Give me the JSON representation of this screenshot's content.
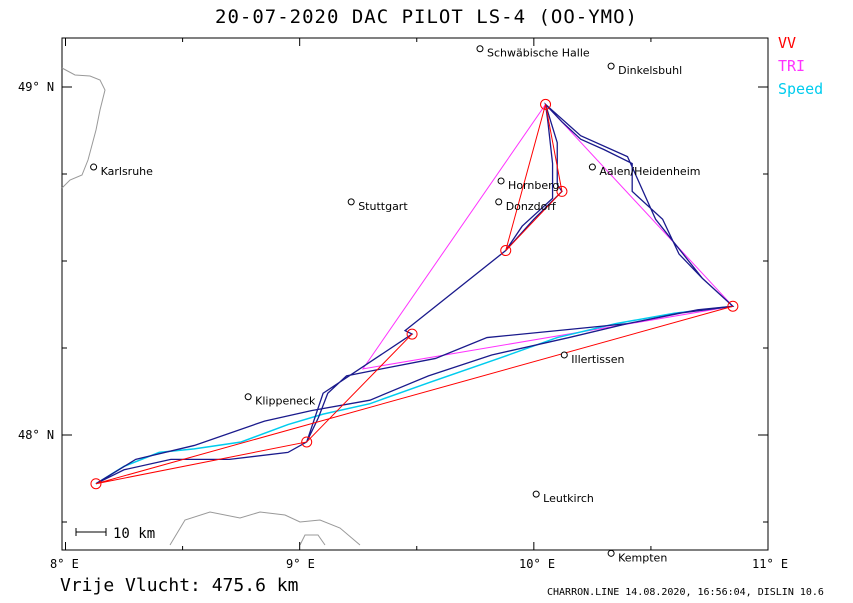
{
  "title": "20-07-2020   DAC PILOT   LS-4 (OO-YMO)",
  "legend": [
    {
      "label": "VV",
      "color": "#ff0000"
    },
    {
      "label": "TRI",
      "color": "#ff33ff"
    },
    {
      "label": "Speed",
      "color": "#00ccee"
    }
  ],
  "axes": {
    "x_ticks": [
      "8° E",
      "9° E",
      "10° E",
      "11° E"
    ],
    "y_ticks": [
      "49° N",
      "48° N"
    ]
  },
  "scale_label": "10 km",
  "places": [
    {
      "name": "Schwäbische Halle",
      "lon": 9.77,
      "lat": 49.11
    },
    {
      "name": "Dinkelsbuhl",
      "lon": 10.33,
      "lat": 49.06
    },
    {
      "name": "Karlsruhe",
      "lon": 8.12,
      "lat": 48.77
    },
    {
      "name": "Stuttgart",
      "lon": 9.22,
      "lat": 48.67
    },
    {
      "name": "Hornberg",
      "lon": 9.86,
      "lat": 48.73
    },
    {
      "name": "Aalen/Heidenheim",
      "lon": 10.25,
      "lat": 48.77
    },
    {
      "name": "Donzdorf",
      "lon": 9.85,
      "lat": 48.67
    },
    {
      "name": "Illertissen",
      "lon": 10.13,
      "lat": 48.23
    },
    {
      "name": "Klippeneck",
      "lon": 8.78,
      "lat": 48.11
    },
    {
      "name": "Leutkirch",
      "lon": 10.01,
      "lat": 47.83
    },
    {
      "name": "Kempten",
      "lon": 10.33,
      "lat": 47.66
    }
  ],
  "turnpoints": [
    {
      "lon": 10.05,
      "lat": 48.95
    },
    {
      "lon": 10.12,
      "lat": 48.7
    },
    {
      "lon": 10.85,
      "lat": 48.37
    },
    {
      "lon": 8.13,
      "lat": 47.86
    },
    {
      "lon": 9.03,
      "lat": 47.98
    },
    {
      "lon": 9.48,
      "lat": 48.29
    },
    {
      "lon": 9.88,
      "lat": 48.53
    }
  ],
  "vv_route": [
    [
      9.88,
      48.53
    ],
    [
      10.05,
      48.95
    ],
    [
      10.12,
      48.7
    ],
    [
      9.88,
      48.53
    ]
  ],
  "vv_route2": [
    [
      10.85,
      48.37
    ],
    [
      8.13,
      47.86
    ],
    [
      9.03,
      47.98
    ],
    [
      9.48,
      48.29
    ],
    [
      9.03,
      47.98
    ],
    [
      8.13,
      47.86
    ],
    [
      10.85,
      48.37
    ]
  ],
  "tri_route": [
    [
      10.05,
      48.95
    ],
    [
      10.85,
      48.37
    ],
    [
      9.27,
      48.19
    ],
    [
      10.05,
      48.95
    ]
  ],
  "flight_track": [
    [
      9.88,
      48.53
    ],
    [
      9.95,
      48.6
    ],
    [
      10.08,
      48.68
    ],
    [
      10.08,
      48.78
    ],
    [
      10.06,
      48.9
    ],
    [
      10.05,
      48.95
    ],
    [
      10.12,
      48.9
    ],
    [
      10.2,
      48.85
    ],
    [
      10.3,
      48.82
    ],
    [
      10.42,
      48.78
    ],
    [
      10.42,
      48.7
    ],
    [
      10.55,
      48.62
    ],
    [
      10.62,
      48.52
    ],
    [
      10.72,
      48.45
    ],
    [
      10.85,
      48.37
    ],
    [
      10.7,
      48.36
    ],
    [
      10.4,
      48.32
    ],
    [
      10.1,
      48.3
    ],
    [
      9.8,
      48.28
    ],
    [
      9.58,
      48.22
    ],
    [
      9.35,
      48.19
    ],
    [
      9.2,
      48.17
    ],
    [
      9.12,
      48.12
    ],
    [
      9.08,
      48.05
    ],
    [
      9.03,
      47.98
    ],
    [
      8.95,
      47.95
    ],
    [
      8.7,
      47.93
    ],
    [
      8.45,
      47.93
    ],
    [
      8.25,
      47.9
    ],
    [
      8.13,
      47.86
    ],
    [
      8.3,
      47.93
    ],
    [
      8.55,
      47.97
    ],
    [
      8.85,
      48.04
    ],
    [
      9.05,
      48.07
    ],
    [
      9.3,
      48.1
    ],
    [
      9.55,
      48.17
    ],
    [
      9.82,
      48.23
    ],
    [
      10.15,
      48.28
    ],
    [
      10.4,
      48.32
    ],
    [
      10.62,
      48.35
    ],
    [
      10.85,
      48.37
    ],
    [
      10.72,
      48.45
    ],
    [
      10.52,
      48.62
    ],
    [
      10.4,
      48.8
    ],
    [
      10.2,
      48.86
    ],
    [
      10.05,
      48.95
    ],
    [
      10.1,
      48.84
    ],
    [
      10.1,
      48.72
    ],
    [
      10.12,
      48.7
    ],
    [
      10.0,
      48.62
    ],
    [
      9.88,
      48.53
    ],
    [
      9.45,
      48.3
    ],
    [
      9.48,
      48.29
    ],
    [
      9.1,
      48.12
    ],
    [
      9.03,
      47.98
    ]
  ],
  "speed_track": [
    [
      8.13,
      47.86
    ],
    [
      8.25,
      47.91
    ],
    [
      8.4,
      47.95
    ],
    [
      8.55,
      47.96
    ],
    [
      8.75,
      47.98
    ],
    [
      8.95,
      48.03
    ],
    [
      9.1,
      48.06
    ],
    [
      9.3,
      48.09
    ],
    [
      9.55,
      48.15
    ],
    [
      9.85,
      48.22
    ],
    [
      10.1,
      48.28
    ],
    [
      10.35,
      48.32
    ],
    [
      10.6,
      48.35
    ],
    [
      10.85,
      48.37
    ]
  ],
  "footer": {
    "left": "Vrije Vlucht:  475.6 km",
    "right": "CHARRON.LINE 14.08.2020, 16:56:04, DISLIN 10.6"
  }
}
